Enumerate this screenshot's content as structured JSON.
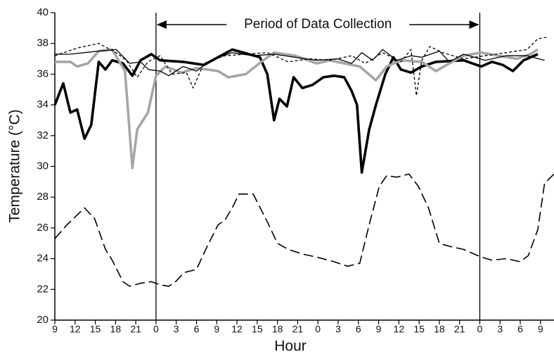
{
  "chart_data": {
    "type": "line",
    "xlabel": "Hour",
    "ylabel": "Temperature (°C)",
    "annotation": "Period of Data Collection",
    "xlim": [
      0,
      74
    ],
    "ylim": [
      20,
      40
    ],
    "xticks": [
      {
        "value": 0,
        "label": "9"
      },
      {
        "value": 3,
        "label": "12"
      },
      {
        "value": 6,
        "label": "15"
      },
      {
        "value": 9,
        "label": "18"
      },
      {
        "value": 12,
        "label": "21"
      },
      {
        "value": 15,
        "label": "0"
      },
      {
        "value": 18,
        "label": "3"
      },
      {
        "value": 21,
        "label": "6"
      },
      {
        "value": 24,
        "label": "9"
      },
      {
        "value": 27,
        "label": "12"
      },
      {
        "value": 30,
        "label": "15"
      },
      {
        "value": 33,
        "label": "18"
      },
      {
        "value": 36,
        "label": "21"
      },
      {
        "value": 39,
        "label": "0"
      },
      {
        "value": 42,
        "label": "3"
      },
      {
        "value": 45,
        "label": "6"
      },
      {
        "value": 48,
        "label": "9"
      },
      {
        "value": 51,
        "label": "12"
      },
      {
        "value": 54,
        "label": "15"
      },
      {
        "value": 57,
        "label": "18"
      },
      {
        "value": 60,
        "label": "21"
      },
      {
        "value": 63,
        "label": "0"
      },
      {
        "value": 66,
        "label": "3"
      },
      {
        "value": 69,
        "label": "6"
      },
      {
        "value": 72,
        "label": "9"
      }
    ],
    "yticks": [
      20,
      22,
      24,
      26,
      28,
      30,
      32,
      34,
      36,
      38,
      40
    ],
    "vlines": [
      15,
      63
    ],
    "series": [
      {
        "color": "#000000",
        "style": "long-dashed",
        "x": [
          0,
          1.8,
          4.4,
          5.9,
          7.5,
          8.5,
          10.1,
          11.1,
          12.7,
          14.3,
          15.6,
          16.9,
          17.9,
          19.2,
          21,
          22.6,
          24.2,
          25.2,
          26.3,
          27.3,
          29.4,
          31.5,
          33,
          34.6,
          36.7,
          38.8,
          41.4,
          43.4,
          45.2,
          46.6,
          48.1,
          49.2,
          50.7,
          52.5,
          53.9,
          55.4,
          57,
          58.5,
          60.6,
          63.2,
          64.8,
          66.9,
          69,
          70.2,
          71.6,
          72.6,
          74
        ],
        "values": [
          25.3,
          26.2,
          27.3,
          26.6,
          24.6,
          23.9,
          22.5,
          22.2,
          22.4,
          22.5,
          22.3,
          22.2,
          22.5,
          23.1,
          23.3,
          24.8,
          26.2,
          26.5,
          27.3,
          28.2,
          28.2,
          26.4,
          25,
          24.6,
          24.3,
          24.1,
          23.8,
          23.5,
          23.7,
          26.2,
          28.7,
          29.4,
          29.3,
          29.5,
          28.7,
          27.3,
          25,
          24.8,
          24.6,
          24.1,
          23.9,
          24,
          23.8,
          24.2,
          25.9,
          28.9,
          29.5
        ]
      },
      {
        "color": "#000000",
        "style": "thick",
        "x": [
          0,
          1.25,
          2.3,
          3.3,
          4.4,
          5.4,
          6.5,
          7.5,
          8.5,
          10.1,
          11.5,
          12.7,
          14.3,
          15.6,
          19,
          22.1,
          26.3,
          30.4,
          31.5,
          32.5,
          33.3,
          34.4,
          35.4,
          36.7,
          38.2,
          39.8,
          41.4,
          42.9,
          44,
          44.8,
          45.5,
          46.6,
          47.6,
          49,
          50.2,
          51.3,
          52.8,
          54.4,
          56.5,
          60.6,
          63.2,
          64.8,
          66.4,
          67.9,
          69.5,
          71.6
        ],
        "values": [
          34,
          35.4,
          33.5,
          33.7,
          31.8,
          32.7,
          36.8,
          36.3,
          36.9,
          36.7,
          35.9,
          36.9,
          37.3,
          36.9,
          36.8,
          36.6,
          37.6,
          37.1,
          36,
          33,
          34.4,
          33.9,
          35.8,
          35.1,
          35.3,
          35.8,
          35.9,
          35.8,
          34.9,
          34,
          29.6,
          32.4,
          34,
          36,
          37.1,
          36.3,
          36.1,
          36.5,
          36.8,
          36.9,
          36.5,
          36.8,
          36.6,
          36.2,
          36.9,
          37.3
        ]
      },
      {
        "color": "#a6a6a6",
        "style": "thick",
        "x": [
          0,
          2.3,
          3.3,
          4.9,
          6.5,
          8.5,
          10.4,
          11.5,
          12.2,
          13.8,
          15,
          16.4,
          18.8,
          21,
          24.2,
          25.7,
          28.3,
          30.6,
          32.5,
          35.6,
          38.8,
          40.8,
          42.9,
          45.2,
          47.6,
          49.2,
          51.3,
          54.4,
          56.5,
          58.5,
          60.6,
          63.2,
          65.8,
          68.5,
          70.5,
          71.6
        ],
        "values": [
          36.8,
          36.8,
          36.5,
          36.7,
          37.5,
          37.6,
          36.2,
          29.9,
          32.4,
          33.5,
          35.9,
          36.5,
          36.1,
          36.4,
          36.2,
          35.8,
          36,
          36.8,
          37.4,
          37.2,
          36.7,
          36.9,
          36.7,
          36.5,
          35.6,
          36.5,
          36.9,
          36.8,
          36.2,
          36.7,
          37.2,
          37.4,
          37.2,
          37,
          37.3,
          37.6
        ]
      },
      {
        "color": "#000000",
        "style": "thin",
        "x": [
          0,
          2.3,
          6.5,
          9.1,
          11.1,
          12.7,
          13.9,
          15.6,
          16.9,
          19,
          21,
          23.1,
          26.3,
          29.4,
          32.5,
          35.6,
          38.8,
          41.9,
          44,
          45.5,
          47.1,
          48.6,
          50.7,
          52.8,
          54.4,
          57,
          58.5,
          60.6,
          63.8,
          66.9,
          70,
          72.6
        ],
        "values": [
          37.3,
          37.3,
          37.5,
          37.6,
          36.7,
          36.8,
          36.3,
          36.2,
          35.9,
          36.5,
          36.2,
          36.9,
          37.4,
          37.2,
          37.3,
          37.1,
          36.9,
          37,
          36.7,
          37.4,
          36.9,
          37.6,
          36.9,
          37.2,
          37.1,
          37.5,
          36.8,
          37.3,
          36.9,
          37.2,
          37.2,
          36.9
        ]
      },
      {
        "color": "#000000",
        "style": "dashed",
        "x": [
          0,
          3.3,
          6.5,
          9.1,
          10.6,
          12.2,
          13.8,
          15.6,
          17.4,
          19.5,
          20.5,
          22.1,
          25.2,
          28.3,
          31.5,
          34.6,
          37.7,
          40.8,
          44,
          46,
          48.6,
          51.3,
          52.8,
          53.6,
          54.4,
          55.6,
          57.5,
          60.6,
          63.8,
          66.9,
          70,
          71.6,
          72.9
        ],
        "values": [
          37.2,
          37.7,
          38,
          37.4,
          36.9,
          35.8,
          36.8,
          37.2,
          36,
          36.1,
          35.1,
          36.7,
          37.2,
          37.3,
          37.4,
          36.8,
          37,
          36.9,
          37.2,
          36.7,
          37.4,
          36.8,
          37.6,
          34.6,
          36.9,
          37.8,
          37.4,
          37,
          37.2,
          37.4,
          37.6,
          38.3,
          38.4
        ]
      }
    ]
  }
}
